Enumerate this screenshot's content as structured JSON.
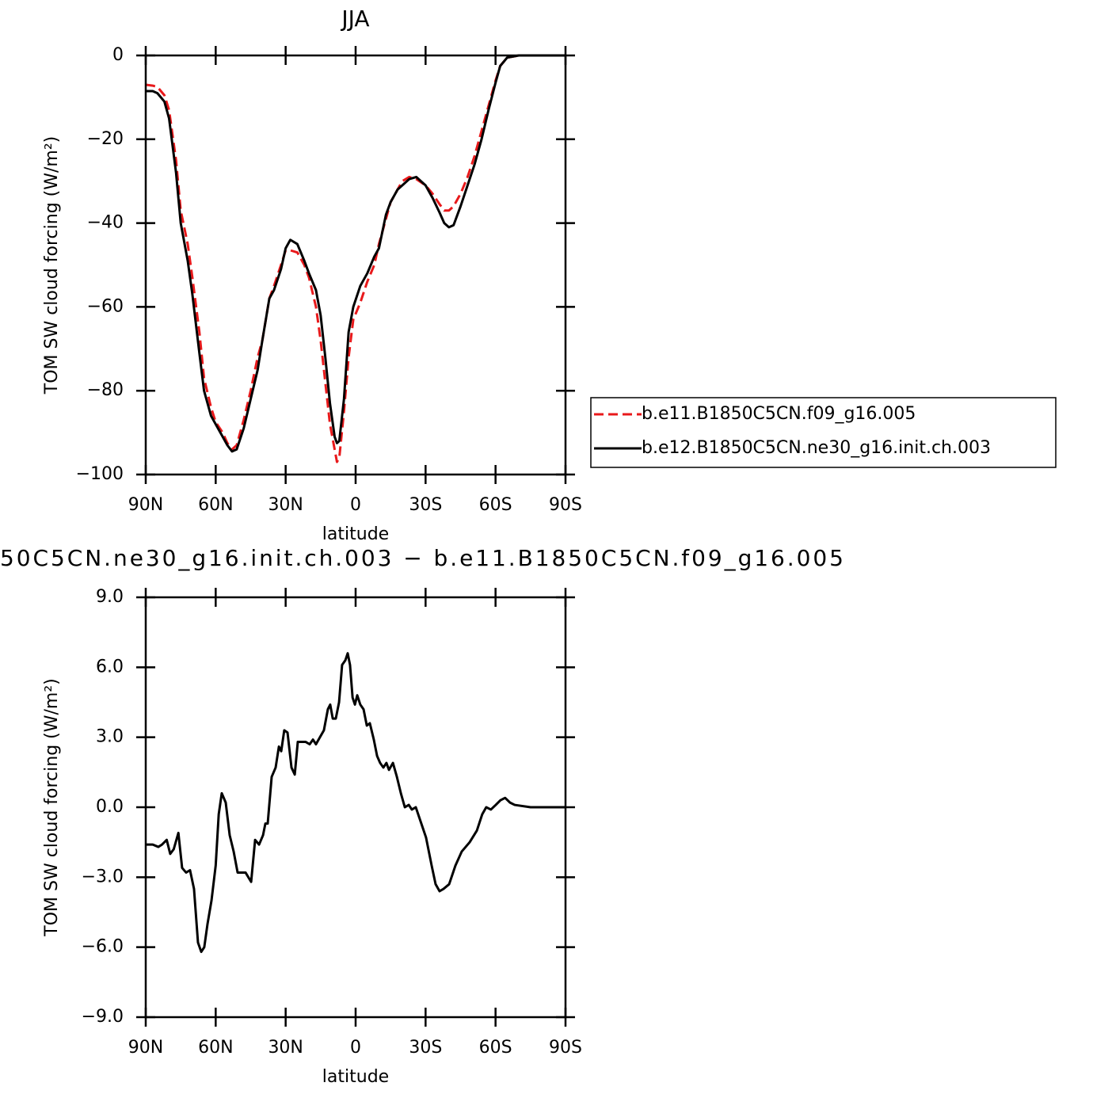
{
  "chart_data": [
    {
      "type": "line",
      "title": "JJA",
      "xlabel": "latitude",
      "ylabel": "TOM SW cloud forcing (W/m²)",
      "x": [
        90,
        87,
        85,
        82,
        80,
        77,
        75,
        72,
        70,
        67,
        65,
        62,
        60,
        57,
        55,
        53,
        51,
        48,
        45,
        42,
        40,
        37,
        35,
        32,
        30,
        28,
        25,
        22,
        20,
        17,
        15,
        13,
        11,
        9,
        8,
        7,
        5,
        3,
        1,
        -2,
        -5,
        -8,
        -10,
        -13,
        -15,
        -18,
        -20,
        -23,
        -26,
        -30,
        -33,
        -36,
        -38,
        -40,
        -42,
        -45,
        -48,
        -51,
        -54,
        -57,
        -60,
        -62,
        -65,
        -70,
        -80,
        -90
      ],
      "series": [
        {
          "name": "b.e11.B1850C5CN.f09_g16.005",
          "color": "#e8191b",
          "dashed": true,
          "values": [
            -7,
            -7.2,
            -7.5,
            -9.5,
            -13,
            -25,
            -37,
            -45,
            -53,
            -66,
            -77,
            -84,
            -87.5,
            -90,
            -92.5,
            -94,
            -93,
            -87,
            -80,
            -72,
            -68,
            -58,
            -55,
            -50,
            -46.5,
            -46.5,
            -47,
            -50,
            -53,
            -60,
            -68,
            -78,
            -88,
            -94,
            -97,
            -96,
            -85,
            -72,
            -63,
            -59,
            -54,
            -50,
            -45,
            -39,
            -35,
            -32,
            -30,
            -29,
            -29.5,
            -31,
            -33,
            -35.5,
            -37,
            -37,
            -36,
            -33,
            -29,
            -24,
            -18,
            -12,
            -6,
            -2.5,
            -0.5,
            0,
            0,
            0
          ]
        },
        {
          "name": "b.e12.B1850C5CN.ne30_g16.init.ch.003",
          "color": "#000000",
          "dashed": false,
          "values": [
            -8.5,
            -8.5,
            -9,
            -11,
            -15,
            -28,
            -40,
            -49,
            -57,
            -71,
            -80,
            -86,
            -88,
            -91,
            -93,
            -94.5,
            -94,
            -89,
            -82,
            -75,
            -68,
            -58,
            -56,
            -51,
            -46,
            -44,
            -45,
            -49,
            -52,
            -56,
            -62,
            -72,
            -83,
            -91,
            -92.5,
            -92,
            -82,
            -66,
            -60,
            -55,
            -52,
            -48,
            -46,
            -38,
            -35,
            -32,
            -31,
            -29.5,
            -29,
            -31,
            -34,
            -37.5,
            -40,
            -41,
            -40.5,
            -36,
            -31,
            -26,
            -20,
            -13,
            -6.5,
            -2.5,
            -0.5,
            0,
            0,
            0
          ]
        }
      ],
      "xlim": [
        90,
        -90
      ],
      "xticks": [
        {
          "value": 90,
          "label": "90N"
        },
        {
          "value": 60,
          "label": "60N"
        },
        {
          "value": 30,
          "label": "30N"
        },
        0,
        {
          "value": -30,
          "label": "30S"
        },
        {
          "value": -60,
          "label": "60S"
        },
        {
          "value": -90,
          "label": "90S"
        }
      ],
      "ylim": [
        -100,
        0
      ],
      "yticks": [
        0,
        {
          "value": -20,
          "label": "−20"
        },
        {
          "value": -40,
          "label": "−40"
        },
        {
          "value": -60,
          "label": "−60"
        },
        {
          "value": -80,
          "label": "−80"
        },
        {
          "value": -100,
          "label": "−100"
        }
      ],
      "legend": "right"
    },
    {
      "type": "line",
      "title": "50C5CN.ne30_g16.init.ch.003 − b.e11.B1850C5CN.f09_g16.005",
      "xlabel": "latitude",
      "ylabel": "TOM SW cloud forcing (W/m²)",
      "x": [
        90,
        87,
        84.6,
        83,
        81,
        79.5,
        78,
        76,
        74.4,
        72.7,
        71,
        69.3,
        67.6,
        66.2,
        64.9,
        63.5,
        61.8,
        60,
        58.7,
        57.4,
        55.7,
        54,
        52.3,
        50.6,
        48.9,
        47.2,
        44.8,
        43.1,
        41.4,
        39.7,
        38.7,
        37.7,
        36,
        34.3,
        32.9,
        31.9,
        30.6,
        29.2,
        27.5,
        26.1,
        24.8,
        23.1,
        21.4,
        19.7,
        18.3,
        17,
        15.3,
        13.6,
        11.9,
        10.9,
        9.8,
        8.5,
        7.1,
        5.8,
        4.4,
        3.4,
        2.4,
        1.3,
        0.3,
        -0.7,
        -2,
        -3.4,
        -4.8,
        -6.1,
        -7.8,
        -9.2,
        -10.5,
        -11.9,
        -13.2,
        -14.3,
        -16,
        -17.7,
        -19.4,
        -21.1,
        -22.8,
        -24.1,
        -25.8,
        -27.5,
        -30.2,
        -32.6,
        -34.3,
        -36,
        -37.7,
        -40.1,
        -42.8,
        -45.5,
        -48.9,
        -52,
        -54.3,
        -56,
        -58,
        -60.1,
        -62.1,
        -64.1,
        -66.2,
        -68.2,
        -75,
        -90
      ],
      "series": [
        {
          "color": "#000000",
          "dashed": false,
          "values": [
            -1.6,
            -1.6,
            -1.7,
            -1.6,
            -1.4,
            -2.0,
            -1.8,
            -1.1,
            -2.6,
            -2.8,
            -2.7,
            -3.5,
            -5.8,
            -6.2,
            -6.0,
            -5,
            -4,
            -2.5,
            -0.3,
            0.6,
            0.2,
            -1.2,
            -1.9,
            -2.8,
            -2.8,
            -2.8,
            -3.2,
            -1.4,
            -1.6,
            -1.2,
            -0.7,
            -0.7,
            1.3,
            1.7,
            2.6,
            2.4,
            3.3,
            3.2,
            1.7,
            1.4,
            2.8,
            2.8,
            2.8,
            2.7,
            2.9,
            2.7,
            3.0,
            3.3,
            4.2,
            4.4,
            3.8,
            3.8,
            4.5,
            6.1,
            6.3,
            6.6,
            6.1,
            4.7,
            4.4,
            4.8,
            4.4,
            4.2,
            3.5,
            3.6,
            2.9,
            2.2,
            1.9,
            1.7,
            1.9,
            1.6,
            1.9,
            1.3,
            0.6,
            0.0,
            0.1,
            -0.1,
            0.0,
            -0.5,
            -1.3,
            -2.5,
            -3.3,
            -3.6,
            -3.5,
            -3.3,
            -2.5,
            -1.9,
            -1.5,
            -1.0,
            -0.3,
            0.0,
            -0.1,
            0.1,
            0.3,
            0.4,
            0.2,
            0.1,
            0,
            0
          ]
        }
      ],
      "xlim": [
        90,
        -90
      ],
      "xticks": [
        {
          "value": 90,
          "label": "90N"
        },
        {
          "value": 60,
          "label": "60N"
        },
        {
          "value": 30,
          "label": "30N"
        },
        0,
        {
          "value": -30,
          "label": "30S"
        },
        {
          "value": -60,
          "label": "60S"
        },
        {
          "value": -90,
          "label": "90S"
        }
      ],
      "ylim": [
        -9,
        9
      ],
      "yticks": [
        {
          "value": 9,
          "label": "9.0"
        },
        {
          "value": 6,
          "label": "6.0"
        },
        {
          "value": 3,
          "label": "3.0"
        },
        {
          "value": 0,
          "label": "0.0"
        },
        {
          "value": -3,
          "label": "−3.0"
        },
        {
          "value": -6,
          "label": "−6.0"
        },
        {
          "value": -9,
          "label": "−9.0"
        }
      ]
    }
  ]
}
